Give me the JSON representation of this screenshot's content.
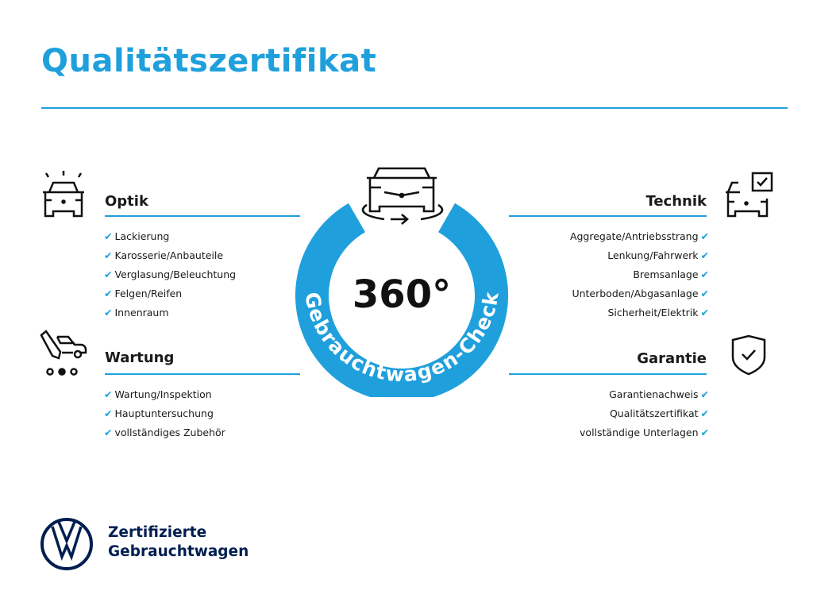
{
  "title": "Qualitätszertifikat",
  "badge": {
    "value": "360°",
    "ring_text": "Gebrauchtwagen-Check",
    "color": "#1fa0dc"
  },
  "sections": {
    "optik": {
      "heading": "Optik",
      "icon": "car-lights-icon",
      "items": [
        "Lackierung",
        "Karosserie/Anbauteile",
        "Verglasung/Beleuchtung",
        "Felgen/Reifen",
        "Innenraum"
      ]
    },
    "wartung": {
      "heading": "Wartung",
      "icon": "service-car-icon",
      "items": [
        "Wartung/Inspektion",
        "Hauptuntersuchung",
        "vollständiges Zubehör"
      ]
    },
    "technik": {
      "heading": "Technik",
      "icon": "car-checkbox-icon",
      "items": [
        "Aggregate/Antriebsstrang",
        "Lenkung/Fahrwerk",
        "Bremsanlage",
        "Unterboden/Abgasanlage",
        "Sicherheit/Elektrik"
      ]
    },
    "garantie": {
      "heading": "Garantie",
      "icon": "shield-check-icon",
      "items": [
        "Garantienachweis",
        "Qualitätszertifikat",
        "vollständige Unterlagen"
      ]
    }
  },
  "check_glyph": "✔",
  "footer": {
    "line1": "Zertifizierte",
    "line2": "Gebrauchtwagen",
    "brand_color": "#001e50"
  }
}
